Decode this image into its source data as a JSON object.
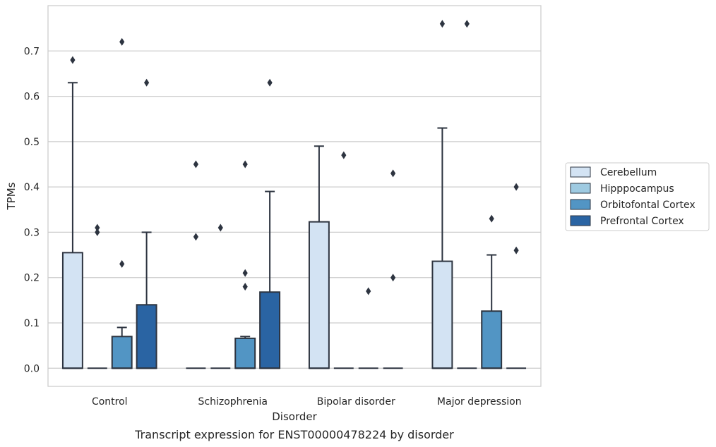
{
  "caption": "Transcript expression for ENST00000478224 by disorder",
  "colors": {
    "Cerebellum": "#d3e3f3",
    "Hipppocampus": "#9ecae1",
    "Orbitofontal Cortex": "#5295c4",
    "Prefrontal Cortex": "#2a64a3",
    "edge": "#2d3440",
    "grid": "#cccccc"
  },
  "chart_data": {
    "type": "box",
    "xlabel": "Disorder",
    "ylabel": "TPMs",
    "ylim": [
      -0.04,
      0.8
    ],
    "yticks": [
      0.0,
      0.1,
      0.2,
      0.3,
      0.4,
      0.5,
      0.6,
      0.7
    ],
    "yticklabels": [
      "0.0",
      "0.1",
      "0.2",
      "0.3",
      "0.4",
      "0.5",
      "0.6",
      "0.7"
    ],
    "grid": "y",
    "legend_placement": "right",
    "categories": [
      "Control",
      "Schizophrenia",
      "Bipolar disorder",
      "Major depression"
    ],
    "series": [
      {
        "name": "Cerebellum",
        "boxes": [
          {
            "q1": 0,
            "median": 0,
            "q3": 0.255,
            "whisker_low": 0,
            "whisker_high": 0.63,
            "outliers": [
              0.68
            ]
          },
          {
            "q1": 0,
            "median": 0,
            "q3": 0,
            "whisker_low": 0,
            "whisker_high": 0,
            "outliers": [
              0.29,
              0.45
            ]
          },
          {
            "q1": 0,
            "median": 0,
            "q3": 0.323,
            "whisker_low": 0,
            "whisker_high": 0.49,
            "outliers": []
          },
          {
            "q1": 0,
            "median": 0,
            "q3": 0.236,
            "whisker_low": 0,
            "whisker_high": 0.53,
            "outliers": [
              0.76
            ]
          }
        ]
      },
      {
        "name": "Hipppocampus",
        "boxes": [
          {
            "q1": 0,
            "median": 0,
            "q3": 0,
            "whisker_low": 0,
            "whisker_high": 0,
            "outliers": [
              0.3,
              0.31
            ]
          },
          {
            "q1": 0,
            "median": 0,
            "q3": 0,
            "whisker_low": 0,
            "whisker_high": 0,
            "outliers": [
              0.31
            ]
          },
          {
            "q1": 0,
            "median": 0,
            "q3": 0,
            "whisker_low": 0,
            "whisker_high": 0,
            "outliers": [
              0.47
            ]
          },
          {
            "q1": 0,
            "median": 0,
            "q3": 0,
            "whisker_low": 0,
            "whisker_high": 0,
            "outliers": [
              0.76
            ]
          }
        ]
      },
      {
        "name": "Orbitofontal Cortex",
        "boxes": [
          {
            "q1": 0,
            "median": 0,
            "q3": 0.07,
            "whisker_low": 0,
            "whisker_high": 0.09,
            "outliers": [
              0.23,
              0.72
            ]
          },
          {
            "q1": 0,
            "median": 0,
            "q3": 0.066,
            "whisker_low": 0,
            "whisker_high": 0.07,
            "outliers": [
              0.18,
              0.21,
              0.45
            ]
          },
          {
            "q1": 0,
            "median": 0,
            "q3": 0,
            "whisker_low": 0,
            "whisker_high": 0,
            "outliers": [
              0.17
            ]
          },
          {
            "q1": 0,
            "median": 0,
            "q3": 0.126,
            "whisker_low": 0,
            "whisker_high": 0.25,
            "outliers": [
              0.33
            ]
          }
        ]
      },
      {
        "name": "Prefrontal Cortex",
        "boxes": [
          {
            "q1": 0,
            "median": 0,
            "q3": 0.14,
            "whisker_low": 0,
            "whisker_high": 0.3,
            "outliers": [
              0.63
            ]
          },
          {
            "q1": 0,
            "median": 0,
            "q3": 0.168,
            "whisker_low": 0,
            "whisker_high": 0.39,
            "outliers": [
              0.63
            ]
          },
          {
            "q1": 0,
            "median": 0,
            "q3": 0,
            "whisker_low": 0,
            "whisker_high": 0,
            "outliers": [
              0.2,
              0.43
            ]
          },
          {
            "q1": 0,
            "median": 0,
            "q3": 0,
            "whisker_low": 0,
            "whisker_high": 0,
            "outliers": [
              0.26,
              0.4
            ]
          }
        ]
      }
    ]
  }
}
